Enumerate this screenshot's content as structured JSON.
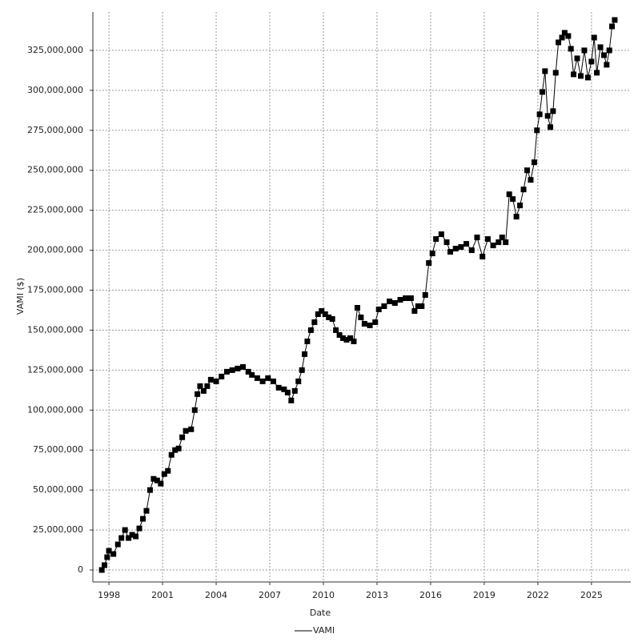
{
  "chart_data": {
    "type": "line",
    "xlabel": "Date",
    "ylabel": "VAMI ($)",
    "xlim": [
      1997.1,
      2027.2
    ],
    "xticks": [
      1998,
      2001,
      2004,
      2007,
      2010,
      2013,
      2016,
      2019,
      2022,
      2025
    ],
    "ylim": [
      -7500000,
      349000000
    ],
    "yticks": [
      0,
      {
        "value": 25000000,
        "label": "25,000,000"
      },
      {
        "value": 50000000,
        "label": "50,000,000"
      },
      {
        "value": 75000000,
        "label": "75,000,000"
      },
      {
        "value": 100000000,
        "label": "100,000,000"
      },
      {
        "value": 125000000,
        "label": "125,000,000"
      },
      {
        "value": 150000000,
        "label": "150,000,000"
      },
      {
        "value": 175000000,
        "label": "175,000,000"
      },
      {
        "value": 200000000,
        "label": "200,000,000"
      },
      {
        "value": 225000000,
        "label": "225,000,000"
      },
      {
        "value": 250000000,
        "label": "250,000,000"
      },
      {
        "value": 275000000,
        "label": "275,000,000"
      },
      {
        "value": 300000000,
        "label": "300,000,000"
      },
      {
        "value": 325000000,
        "label": "325,000,000"
      }
    ],
    "grid": true,
    "legend": "bottom",
    "x": [
      1997.6,
      1997.75,
      1997.9,
      1998.0,
      1998.25,
      1998.5,
      1998.7,
      1998.9,
      1999.1,
      1999.3,
      1999.5,
      1999.7,
      1999.9,
      2000.1,
      2000.3,
      2000.5,
      2000.7,
      2000.9,
      2001.1,
      2001.3,
      2001.5,
      2001.7,
      2001.9,
      2002.1,
      2002.3,
      2002.6,
      2002.8,
      2002.95,
      2003.1,
      2003.3,
      2003.5,
      2003.7,
      2004.0,
      2004.3,
      2004.6,
      2004.9,
      2005.2,
      2005.5,
      2005.8,
      2006.0,
      2006.3,
      2006.6,
      2006.9,
      2007.2,
      2007.5,
      2007.8,
      2008.0,
      2008.2,
      2008.4,
      2008.6,
      2008.8,
      2008.95,
      2009.1,
      2009.3,
      2009.5,
      2009.7,
      2009.9,
      2010.1,
      2010.3,
      2010.5,
      2010.7,
      2010.9,
      2011.1,
      2011.3,
      2011.5,
      2011.7,
      2011.9,
      2012.1,
      2012.3,
      2012.6,
      2012.9,
      2013.1,
      2013.4,
      2013.7,
      2014.0,
      2014.3,
      2014.6,
      2014.9,
      2015.1,
      2015.3,
      2015.5,
      2015.7,
      2015.9,
      2016.1,
      2016.3,
      2016.6,
      2016.9,
      2017.1,
      2017.4,
      2017.7,
      2018.0,
      2018.3,
      2018.6,
      2018.9,
      2019.2,
      2019.5,
      2019.8,
      2020.0,
      2020.2,
      2020.4,
      2020.6,
      2020.8,
      2021.0,
      2021.2,
      2021.4,
      2021.6,
      2021.8,
      2021.95,
      2022.1,
      2022.25,
      2022.4,
      2022.55,
      2022.7,
      2022.85,
      2023.0,
      2023.15,
      2023.35,
      2023.5,
      2023.7,
      2023.85,
      2024.0,
      2024.2,
      2024.4,
      2024.6,
      2024.8,
      2025.0,
      2025.15,
      2025.3,
      2025.5,
      2025.7,
      2025.85,
      2026.0,
      2026.15,
      2026.3
    ],
    "series": [
      {
        "name": "VAMI",
        "color": "#000000",
        "values": [
          0,
          3000000,
          8000000,
          12000000,
          10000000,
          16000000,
          20000000,
          25000000,
          20000000,
          22000000,
          21000000,
          26000000,
          32000000,
          37000000,
          50000000,
          57000000,
          56000000,
          54000000,
          60000000,
          62000000,
          72000000,
          75000000,
          76000000,
          83000000,
          87000000,
          88000000,
          100000000,
          110000000,
          115000000,
          112000000,
          115000000,
          119000000,
          118000000,
          121000000,
          124000000,
          125000000,
          126000000,
          127000000,
          124000000,
          122000000,
          120000000,
          118000000,
          120000000,
          118000000,
          114000000,
          113000000,
          111000000,
          106000000,
          112000000,
          118000000,
          125000000,
          135000000,
          143000000,
          150000000,
          155000000,
          160000000,
          162000000,
          160000000,
          158000000,
          157000000,
          150000000,
          147000000,
          145000000,
          144000000,
          145000000,
          143000000,
          164000000,
          158000000,
          154000000,
          153000000,
          155000000,
          163000000,
          165000000,
          168000000,
          167000000,
          169000000,
          170000000,
          170000000,
          162000000,
          165000000,
          165000000,
          172000000,
          192000000,
          198000000,
          207000000,
          210000000,
          205000000,
          199000000,
          201000000,
          202000000,
          204000000,
          200000000,
          208000000,
          196000000,
          207000000,
          203000000,
          205000000,
          208000000,
          205000000,
          235000000,
          232000000,
          221000000,
          228000000,
          238000000,
          250000000,
          244000000,
          255000000,
          275000000,
          285000000,
          299000000,
          312000000,
          284000000,
          277000000,
          287000000,
          311000000,
          330000000,
          333000000,
          336000000,
          334000000,
          326000000,
          310000000,
          320000000,
          309000000,
          325000000,
          308000000,
          318000000,
          333000000,
          311000000,
          327000000,
          322000000,
          316000000,
          325000000,
          340000000,
          344000000
        ]
      }
    ]
  }
}
